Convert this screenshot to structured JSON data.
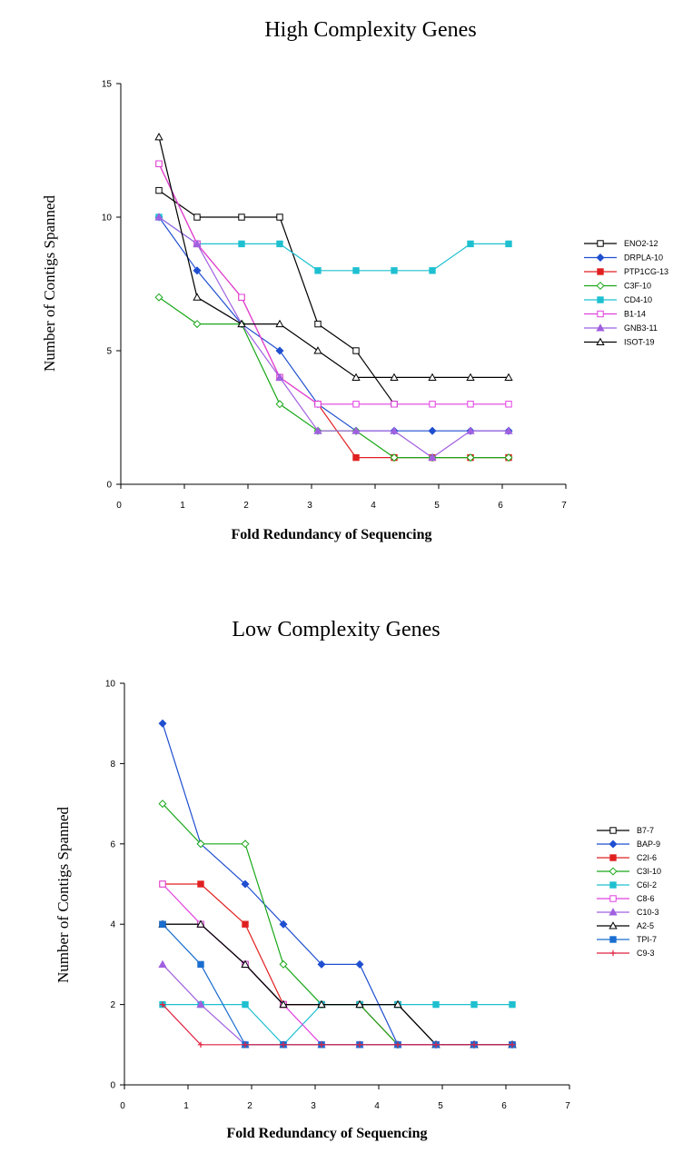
{
  "chart_data": [
    {
      "type": "line",
      "title": "High Complexity Genes",
      "xlabel": "Fold Redundancy of Sequencing",
      "ylabel": "Number of Contigs Spanned",
      "xlim": [
        0,
        7
      ],
      "ylim": [
        0,
        15
      ],
      "xticks": [
        "0",
        "1",
        "2",
        "3",
        "4",
        "5",
        "6",
        "7"
      ],
      "yticks": [
        "0",
        "5",
        "10",
        "15"
      ],
      "grid": false,
      "legend": "right",
      "x": [
        0.6,
        1.2,
        1.9,
        2.5,
        3.1,
        3.7,
        4.3,
        4.9,
        5.5,
        6.1
      ],
      "series": [
        {
          "name": "ENO2-12",
          "color": "#000000",
          "marker": "square-open",
          "x": [
            0.6,
            1.2,
            1.9,
            2.5,
            3.1,
            3.7,
            4.3
          ],
          "values": [
            11,
            10,
            10,
            10,
            6,
            5,
            3
          ]
        },
        {
          "name": "DRPLA-10",
          "color": "#1f4fd0",
          "marker": "diamond",
          "x": [
            0.6,
            1.2,
            1.9,
            2.5,
            3.1,
            3.7,
            4.3,
            4.9,
            5.5,
            6.1
          ],
          "values": [
            10,
            8,
            6,
            5,
            3,
            2,
            2,
            2,
            2,
            2
          ]
        },
        {
          "name": "PTP1CG-13",
          "color": "#e02020",
          "marker": "square-filled",
          "x": [
            0.6,
            1.2,
            1.9,
            2.5,
            3.1,
            3.7,
            4.3,
            4.9,
            5.5,
            6.1
          ],
          "values": [
            12,
            9,
            7,
            4,
            3,
            1,
            1,
            1,
            1,
            1
          ]
        },
        {
          "name": "C3F-10",
          "color": "#1aa81a",
          "marker": "diamond-open",
          "x": [
            0.6,
            1.2,
            1.9,
            2.5,
            3.1,
            3.7,
            4.3,
            4.9,
            5.5,
            6.1
          ],
          "values": [
            7,
            6,
            6,
            3,
            2,
            2,
            1,
            1,
            1,
            1
          ]
        },
        {
          "name": "CD4-10",
          "color": "#1ec0d0",
          "marker": "square-filled",
          "x": [
            0.6,
            1.2,
            1.9,
            2.5,
            3.1,
            3.7,
            4.3,
            4.9,
            5.5,
            6.1
          ],
          "values": [
            10,
            9,
            9,
            9,
            8,
            8,
            8,
            8,
            9,
            9
          ]
        },
        {
          "name": "B1-14",
          "color": "#e040e0",
          "marker": "square-open",
          "x": [
            0.6,
            1.2,
            1.9,
            2.5,
            3.1,
            3.7,
            4.3,
            4.9,
            5.5,
            6.1
          ],
          "values": [
            12,
            9,
            7,
            4,
            3,
            3,
            3,
            3,
            3,
            3
          ]
        },
        {
          "name": "GNB3-11",
          "color": "#a060e0",
          "marker": "triangle-filled",
          "x": [
            0.6,
            1.2,
            1.9,
            2.5,
            3.1,
            3.7,
            4.3,
            4.9,
            5.5,
            6.1
          ],
          "values": [
            10,
            9,
            6,
            4,
            2,
            2,
            2,
            1,
            2,
            2
          ]
        },
        {
          "name": "ISOT-19",
          "color": "#000000",
          "marker": "triangle-open",
          "x": [
            0.6,
            1.2,
            1.9,
            2.5,
            3.1,
            3.7,
            4.3,
            4.9,
            5.5,
            6.1
          ],
          "values": [
            13,
            7,
            6,
            6,
            5,
            4,
            4,
            4,
            4,
            4
          ]
        }
      ]
    },
    {
      "type": "line",
      "title": "Low Complexity Genes",
      "xlabel": "Fold Redundancy of Sequencing",
      "ylabel": "Number of Contigs Spanned",
      "xlim": [
        0,
        7
      ],
      "ylim": [
        0,
        10
      ],
      "xticks": [
        "0",
        "1",
        "2",
        "3",
        "4",
        "5",
        "6",
        "7"
      ],
      "yticks": [
        "0",
        "2",
        "4",
        "6",
        "8",
        "10"
      ],
      "grid": false,
      "legend": "right",
      "series": [
        {
          "name": "B7-7",
          "color": "#000000",
          "marker": "square-open",
          "x": [
            0.6,
            1.2,
            1.9,
            2.5,
            3.1,
            3.7,
            4.3,
            4.9,
            5.5,
            6.1
          ],
          "values": [
            4,
            4,
            3,
            2,
            2,
            2,
            2,
            1,
            1,
            1
          ]
        },
        {
          "name": "BAP-9",
          "color": "#1f4fd0",
          "marker": "diamond",
          "x": [
            0.6,
            1.2,
            1.9,
            2.5,
            3.1,
            3.7,
            4.3,
            4.9,
            5.5,
            6.1
          ],
          "values": [
            9,
            6,
            5,
            4,
            3,
            3,
            1,
            1,
            1,
            1
          ]
        },
        {
          "name": "C2I-6",
          "color": "#e02020",
          "marker": "square-filled",
          "x": [
            0.6,
            1.2,
            1.9,
            2.5,
            3.1,
            3.7,
            4.3,
            4.9,
            5.5,
            6.1
          ],
          "values": [
            5,
            5,
            4,
            2,
            2,
            2,
            1,
            1,
            1,
            1
          ]
        },
        {
          "name": "C3I-10",
          "color": "#1aa81a",
          "marker": "diamond-open",
          "x": [
            0.6,
            1.2,
            1.9,
            2.5,
            3.1,
            3.7,
            4.3
          ],
          "values": [
            7,
            6,
            6,
            3,
            2,
            2,
            1
          ]
        },
        {
          "name": "C6I-2",
          "color": "#1ec0d0",
          "marker": "square-filled",
          "x": [
            0.6,
            1.2,
            1.9,
            2.5,
            3.1,
            3.7,
            4.3,
            4.9,
            5.5,
            6.1
          ],
          "values": [
            2,
            2,
            2,
            1,
            2,
            2,
            2,
            2,
            2,
            2
          ]
        },
        {
          "name": "C8-6",
          "color": "#e040e0",
          "marker": "square-open",
          "x": [
            0.6,
            1.2,
            1.9,
            2.5,
            3.1,
            3.7,
            4.3,
            4.9,
            5.5,
            6.1
          ],
          "values": [
            5,
            4,
            3,
            2,
            1,
            1,
            1,
            1,
            1,
            1
          ]
        },
        {
          "name": "C10-3",
          "color": "#a060e0",
          "marker": "triangle-filled",
          "x": [
            0.6,
            1.2,
            1.9,
            2.5,
            3.1,
            3.7,
            4.3,
            4.9,
            5.5,
            6.1
          ],
          "values": [
            3,
            2,
            1,
            1,
            1,
            1,
            1,
            1,
            1,
            1
          ]
        },
        {
          "name": "A2-5",
          "color": "#000000",
          "marker": "triangle-open",
          "x": [
            0.6,
            1.2,
            1.9,
            2.5,
            3.1,
            3.7,
            4.3,
            4.9,
            5.5,
            6.1
          ],
          "values": [
            4,
            4,
            3,
            2,
            2,
            2,
            2,
            1,
            1,
            1
          ]
        },
        {
          "name": "TPI-7",
          "color": "#1a6ed0",
          "marker": "square-filled",
          "x": [
            0.6,
            1.2,
            1.9,
            2.5,
            3.1,
            3.7,
            4.3,
            4.9,
            5.5,
            6.1
          ],
          "values": [
            4,
            3,
            1,
            1,
            1,
            1,
            1,
            1,
            1,
            1
          ]
        },
        {
          "name": "C9-3",
          "color": "#e02040",
          "marker": "plus",
          "x": [
            0.6,
            1.2,
            1.9,
            2.5,
            3.1,
            3.7,
            4.3,
            4.9,
            5.5,
            6.1
          ],
          "values": [
            2,
            1,
            1,
            1,
            1,
            1,
            1,
            1,
            1,
            1
          ]
        }
      ]
    }
  ]
}
